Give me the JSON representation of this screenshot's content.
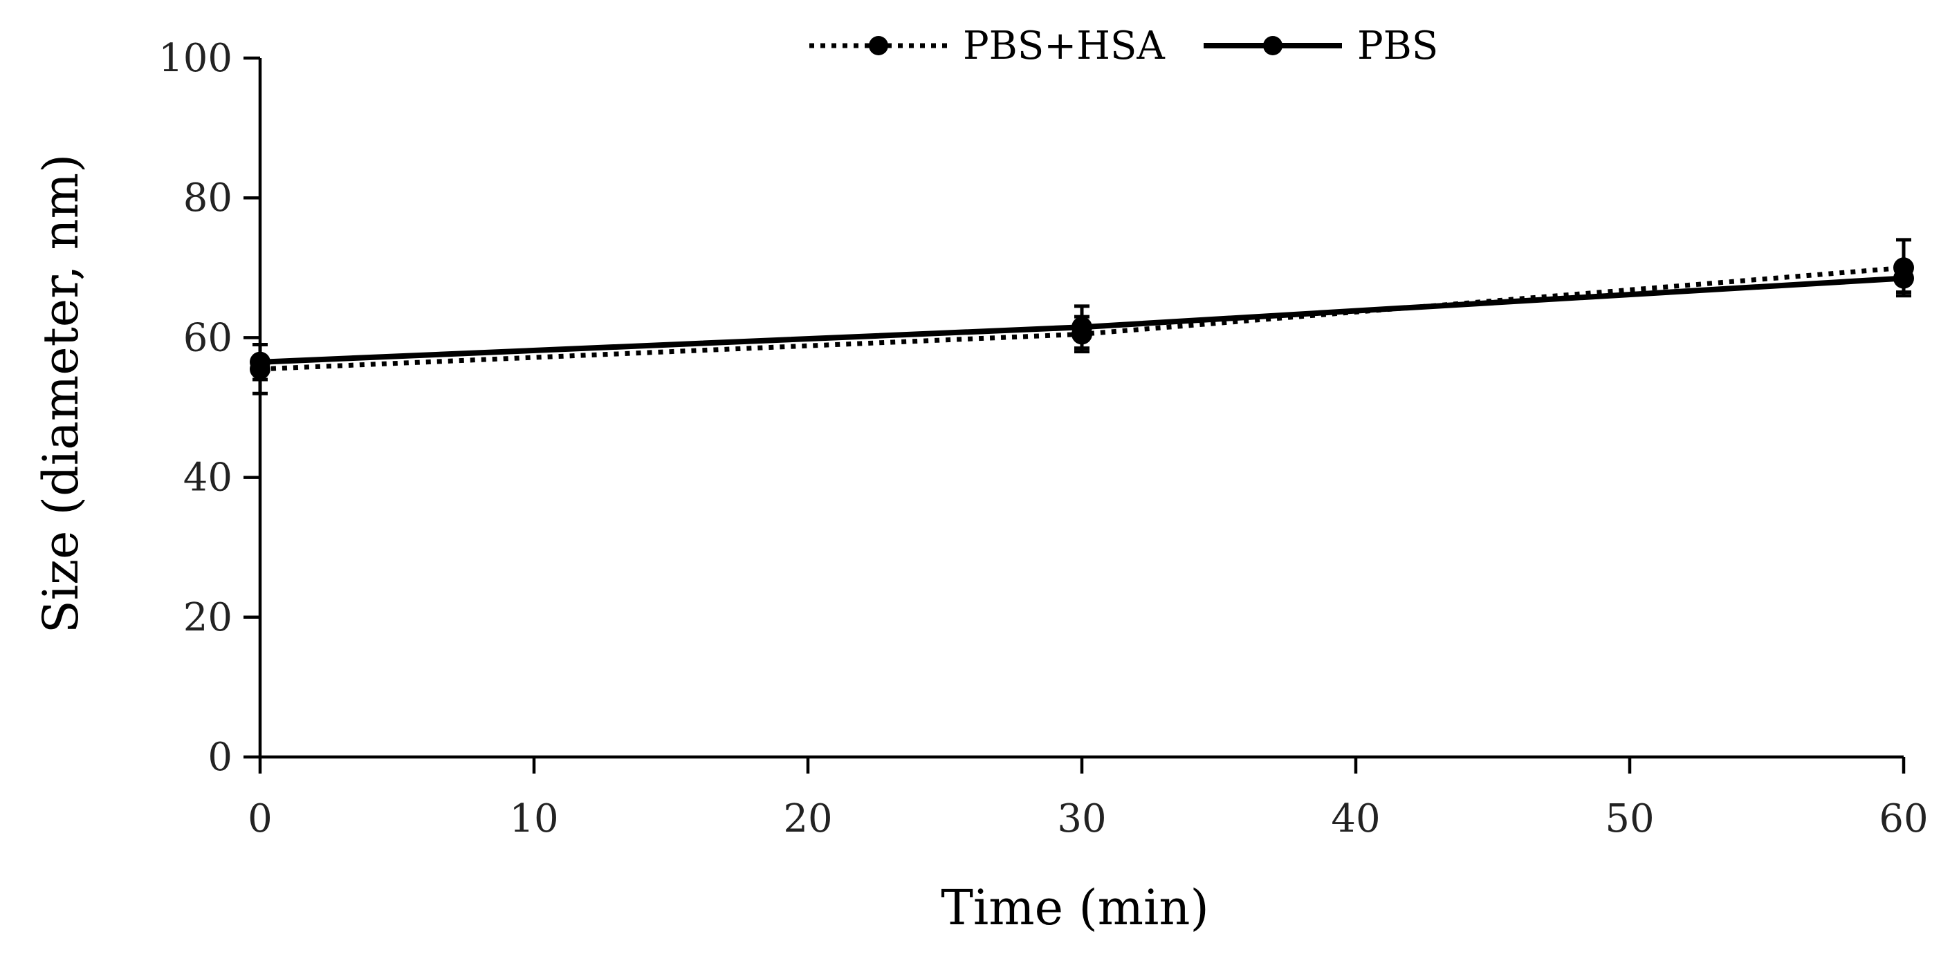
{
  "chart_data": {
    "type": "line",
    "title": "",
    "xlabel": "Time (min)",
    "ylabel": "Size (diameter, nm)",
    "xlim": [
      0,
      60
    ],
    "ylim": [
      0,
      100
    ],
    "xticks": [
      0,
      10,
      20,
      30,
      40,
      50,
      60
    ],
    "yticks": [
      0,
      20,
      40,
      60,
      80,
      100
    ],
    "grid": false,
    "legend_position": "top-center",
    "x": [
      0,
      30,
      60
    ],
    "series": [
      {
        "name": "PBS+HSA",
        "style": "dotted",
        "color": "#000000",
        "values": [
          55.5,
          60.5,
          70
        ],
        "error": [
          3.5,
          2.5,
          4
        ]
      },
      {
        "name": "PBS",
        "style": "solid",
        "color": "#000000",
        "values": [
          56.5,
          61.5,
          68.5
        ],
        "error": [
          2.5,
          3,
          2
        ]
      }
    ]
  }
}
